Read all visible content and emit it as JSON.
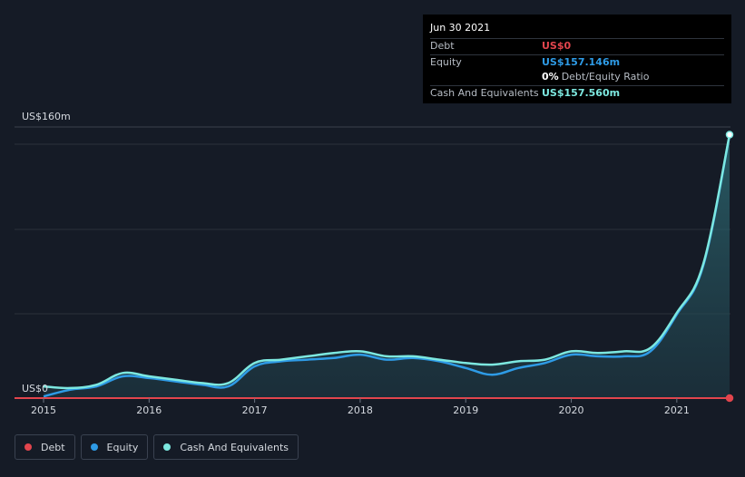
{
  "tooltip": {
    "date": "Jun 30 2021",
    "debt_label": "Debt",
    "debt_value": "US$0",
    "equity_label": "Equity",
    "equity_value": "US$157.146m",
    "ratio_pct": "0%",
    "ratio_label": "Debt/Equity Ratio",
    "cash_label": "Cash And Equivalents",
    "cash_value": "US$157.560m"
  },
  "colors": {
    "debt": "#e2454d",
    "equity": "#2e9be6",
    "cash": "#7de8e0",
    "background": "#151b26",
    "grid": "#2b313b"
  },
  "legend": [
    {
      "label": "Debt",
      "color": "#e2454d"
    },
    {
      "label": "Equity",
      "color": "#2e9be6"
    },
    {
      "label": "Cash And Equivalents",
      "color": "#7de8e0"
    }
  ],
  "chart_data": {
    "type": "area",
    "x_ticks": [
      2015,
      2016,
      2017,
      2018,
      2019,
      2020,
      2021
    ],
    "y_tick_labels": {
      "top": "US$160m",
      "bottom": "US$0"
    },
    "ylim": [
      0,
      160
    ],
    "xlim": [
      2015.0,
      2021.5
    ],
    "grid": true,
    "legend_position": "bottom-left",
    "series": [
      {
        "name": "Cash And Equivalents",
        "key": "cash",
        "x": [
          2015.0,
          2015.25,
          2015.5,
          2015.75,
          2016.0,
          2016.25,
          2016.5,
          2016.75,
          2017.0,
          2017.25,
          2017.5,
          2017.75,
          2018.0,
          2018.25,
          2018.5,
          2018.75,
          2019.0,
          2019.25,
          2019.5,
          2019.75,
          2020.0,
          2020.25,
          2020.5,
          2020.75,
          2021.0,
          2021.25,
          2021.5
        ],
        "values": [
          7,
          6,
          8,
          15,
          13,
          11,
          9,
          9,
          21,
          23,
          25,
          27,
          28,
          25,
          25,
          23,
          21,
          20,
          22,
          23,
          28,
          27,
          28,
          30,
          51,
          80,
          157.56
        ]
      },
      {
        "name": "Equity",
        "key": "equity",
        "x": [
          2015.0,
          2015.25,
          2015.5,
          2015.75,
          2016.0,
          2016.25,
          2016.5,
          2016.75,
          2017.0,
          2017.25,
          2017.5,
          2017.75,
          2018.0,
          2018.25,
          2018.5,
          2018.75,
          2019.0,
          2019.25,
          2019.5,
          2019.75,
          2020.0,
          2020.25,
          2020.5,
          2020.75,
          2021.0,
          2021.25,
          2021.5
        ],
        "values": [
          1,
          5,
          7,
          13,
          12,
          10,
          8,
          7,
          19,
          22,
          23,
          24,
          26,
          23,
          24,
          22,
          18,
          14,
          18,
          21,
          26,
          25,
          25,
          28,
          50,
          79,
          157.146
        ]
      },
      {
        "name": "Debt",
        "key": "debt",
        "x": [
          2015.0,
          2021.5
        ],
        "values": [
          0,
          0
        ]
      }
    ]
  }
}
